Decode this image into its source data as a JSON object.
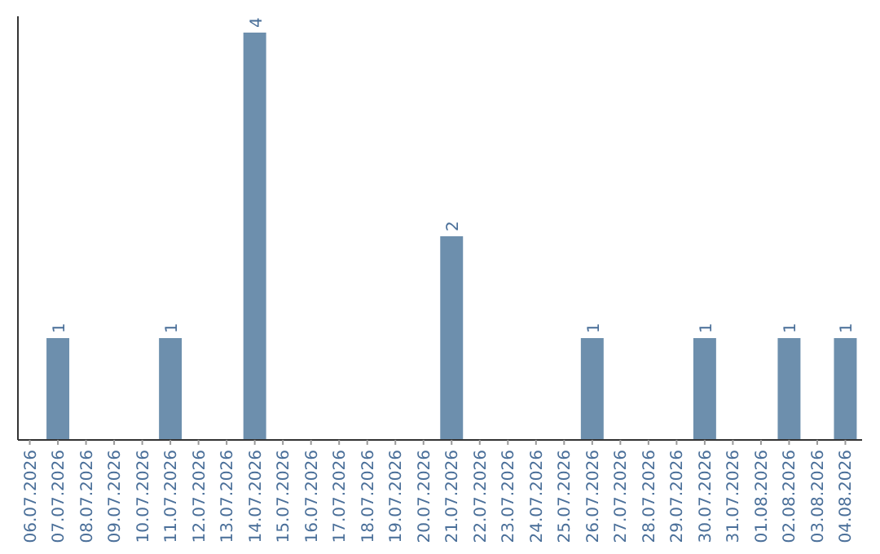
{
  "chart_data": {
    "type": "bar",
    "categories": [
      "06.07.2026",
      "07.07.2026",
      "08.07.2026",
      "09.07.2026",
      "10.07.2026",
      "11.07.2026",
      "12.07.2026",
      "13.07.2026",
      "14.07.2026",
      "15.07.2026",
      "16.07.2026",
      "17.07.2026",
      "18.07.2026",
      "19.07.2026",
      "20.07.2026",
      "21.07.2026",
      "22.07.2026",
      "23.07.2026",
      "24.07.2026",
      "25.07.2026",
      "26.07.2026",
      "27.07.2026",
      "28.07.2026",
      "29.07.2026",
      "30.07.2026",
      "31.07.2026",
      "01.08.2026",
      "02.08.2026",
      "03.08.2026",
      "04.08.2026"
    ],
    "values": [
      0,
      1,
      0,
      0,
      0,
      1,
      0,
      0,
      4,
      0,
      0,
      0,
      0,
      0,
      0,
      2,
      0,
      0,
      0,
      0,
      1,
      0,
      0,
      0,
      1,
      0,
      0,
      1,
      0,
      1
    ],
    "value_labels": [
      null,
      "1",
      null,
      null,
      null,
      "1",
      null,
      null,
      "4",
      null,
      null,
      null,
      null,
      null,
      null,
      "2",
      null,
      null,
      null,
      null,
      "1",
      null,
      null,
      null,
      "1",
      null,
      null,
      "1",
      null,
      "1"
    ],
    "color": "#6d8fad"
  }
}
